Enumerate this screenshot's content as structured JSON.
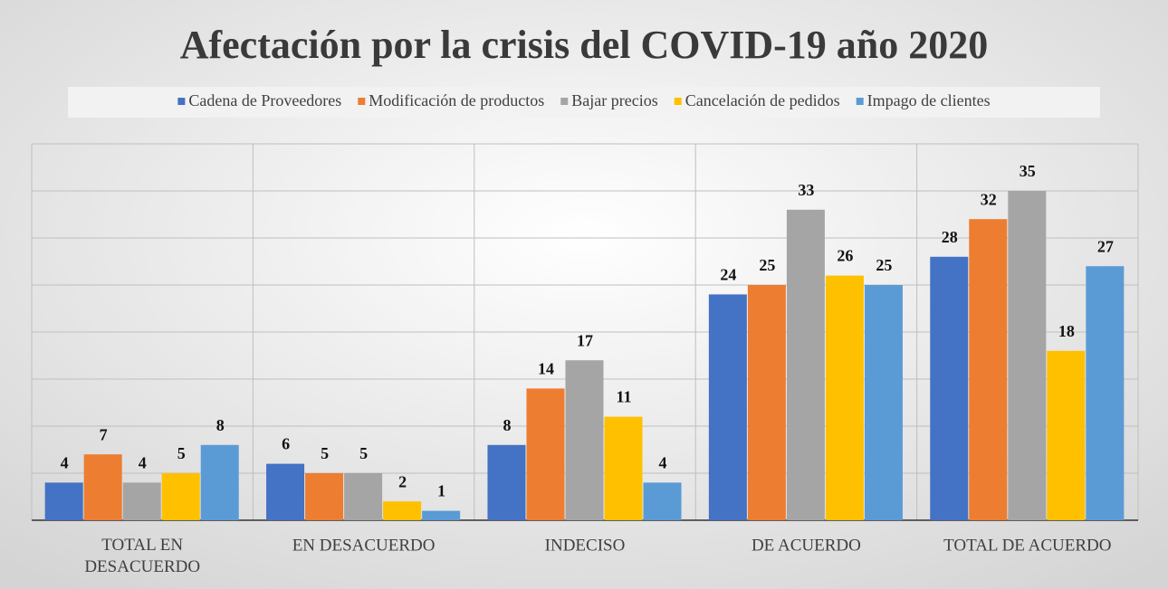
{
  "chart_data": {
    "type": "bar",
    "title": "Afectación por la crisis del COVID-19  año 2020",
    "categories": [
      "TOTAL EN DESACUERDO",
      "EN DESACUERDO",
      "INDECISO",
      "DE ACUERDO",
      "TOTAL DE ACUERDO"
    ],
    "series": [
      {
        "name": "Cadena de Proveedores",
        "color": "#4472c4",
        "values": [
          4,
          6,
          8,
          24,
          28
        ]
      },
      {
        "name": "Modificación de productos",
        "color": "#ed7d31",
        "values": [
          7,
          5,
          14,
          25,
          32
        ]
      },
      {
        "name": "Bajar precios",
        "color": "#a5a5a5",
        "values": [
          4,
          5,
          17,
          33,
          35
        ]
      },
      {
        "name": "Cancelación de pedidos",
        "color": "#ffc000",
        "values": [
          5,
          2,
          11,
          26,
          18
        ]
      },
      {
        "name": "Impago de clientes",
        "color": "#5b9bd5",
        "values": [
          8,
          1,
          4,
          25,
          27
        ]
      }
    ],
    "ylim": [
      0,
      40
    ],
    "yticks": [
      0,
      5,
      10,
      15,
      20,
      25,
      30,
      35,
      40
    ],
    "grid": true,
    "show_ytick_labels": false,
    "legend": "top"
  }
}
